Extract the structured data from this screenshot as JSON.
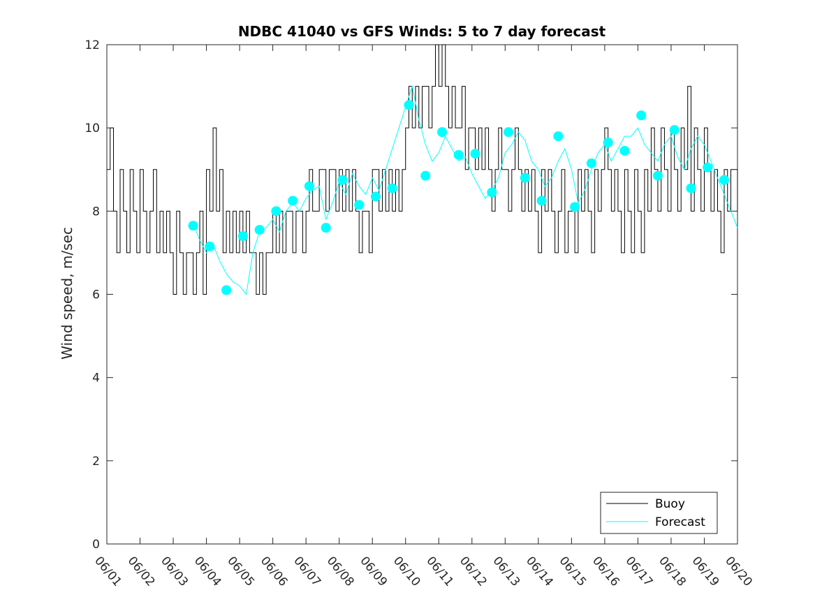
{
  "chart_data": {
    "type": "line",
    "title": "NDBC 41040 vs GFS Winds: 5 to 7 day forecast",
    "xlabel": "",
    "ylabel": "Wind speed, m/sec",
    "x_ticks": [
      "06/01",
      "06/02",
      "06/03",
      "06/04",
      "06/05",
      "06/06",
      "06/07",
      "06/08",
      "06/09",
      "06/10",
      "06/11",
      "06/12",
      "06/13",
      "06/14",
      "06/15",
      "06/16",
      "06/17",
      "06/18",
      "06/19",
      "06/20"
    ],
    "y_ticks": [
      "0",
      "2",
      "4",
      "6",
      "8",
      "10",
      "12"
    ],
    "xlim_days": [
      0,
      19
    ],
    "ylim": [
      0,
      12
    ],
    "grid": false,
    "legend_position": "bottom-right",
    "colors": {
      "buoy": "#000000",
      "forecast": "#00ffff",
      "axes": "#262626"
    },
    "legend": [
      {
        "label": "Buoy",
        "color": "#000000"
      },
      {
        "label": "Forecast",
        "color": "#00ffff"
      }
    ],
    "series": [
      {
        "name": "Buoy",
        "x": [
          0.0,
          0.1,
          0.2,
          0.3,
          0.4,
          0.5,
          0.6,
          0.7,
          0.8,
          0.9,
          1.0,
          1.1,
          1.2,
          1.3,
          1.4,
          1.5,
          1.6,
          1.7,
          1.8,
          1.9,
          2.0,
          2.1,
          2.2,
          2.3,
          2.4,
          2.5,
          2.6,
          2.7,
          2.8,
          2.9,
          3.0,
          3.1,
          3.2,
          3.3,
          3.4,
          3.5,
          3.6,
          3.7,
          3.8,
          3.9,
          4.0,
          4.1,
          4.2,
          4.3,
          4.4,
          4.5,
          4.6,
          4.7,
          4.8,
          4.9,
          5.0,
          5.1,
          5.2,
          5.3,
          5.4,
          5.5,
          5.6,
          5.7,
          5.8,
          5.9,
          6.0,
          6.1,
          6.2,
          6.3,
          6.4,
          6.5,
          6.6,
          6.7,
          6.8,
          6.9,
          7.0,
          7.1,
          7.2,
          7.3,
          7.4,
          7.5,
          7.6,
          7.7,
          7.8,
          7.9,
          8.0,
          8.1,
          8.2,
          8.3,
          8.4,
          8.5,
          8.6,
          8.7,
          8.8,
          8.9,
          9.0,
          9.1,
          9.2,
          9.3,
          9.4,
          9.5,
          9.6,
          9.7,
          9.8,
          9.9,
          10.0,
          10.1,
          10.2,
          10.3,
          10.4,
          10.5,
          10.6,
          10.7,
          10.8,
          10.9,
          11.0,
          11.1,
          11.2,
          11.3,
          11.4,
          11.5,
          11.6,
          11.7,
          11.8,
          11.9,
          12.0,
          12.1,
          12.2,
          12.3,
          12.4,
          12.5,
          12.6,
          12.7,
          12.8,
          12.9,
          13.0,
          13.1,
          13.2,
          13.3,
          13.4,
          13.5,
          13.6,
          13.7,
          13.8,
          13.9,
          14.0,
          14.1,
          14.2,
          14.3,
          14.4,
          14.5,
          14.6,
          14.7,
          14.8,
          14.9,
          15.0,
          15.1,
          15.2,
          15.3,
          15.4,
          15.5,
          15.6,
          15.7,
          15.8,
          15.9,
          16.0,
          16.1,
          16.2,
          16.3,
          16.4,
          16.5,
          16.6,
          16.7,
          16.8,
          16.9,
          17.0,
          17.1,
          17.2,
          17.3,
          17.4,
          17.5,
          17.6,
          17.7,
          17.8,
          17.9,
          18.0,
          18.1,
          18.2,
          18.3,
          18.4,
          18.5,
          18.6,
          18.7,
          18.8,
          18.9,
          19.0
        ],
        "y": [
          9,
          10,
          8,
          7,
          9,
          8,
          7,
          9,
          8,
          7,
          9,
          8,
          7,
          8,
          9,
          7,
          8,
          7,
          8,
          7,
          6,
          8,
          7,
          6,
          7,
          7,
          6,
          7,
          8,
          6,
          9,
          8,
          10,
          8,
          9,
          7,
          8,
          7,
          8,
          7,
          8,
          7,
          8,
          7,
          7,
          6,
          7,
          6,
          7,
          7,
          8,
          7,
          8,
          7,
          8,
          8,
          7,
          8,
          8,
          7,
          8,
          9,
          8,
          8,
          9,
          9,
          8,
          9,
          9,
          8,
          9,
          8,
          9,
          8,
          9,
          8,
          7,
          8,
          8,
          7,
          9,
          9,
          8,
          9,
          8,
          9,
          8,
          9,
          8,
          9,
          10,
          11,
          10,
          11,
          10,
          11,
          11,
          10,
          11,
          12,
          11,
          12,
          11,
          10,
          11,
          10,
          10,
          11,
          9,
          10,
          10,
          9,
          10,
          9,
          10,
          9,
          8,
          9,
          10,
          9,
          9,
          8,
          9,
          10,
          9,
          8,
          9,
          8,
          9,
          8,
          7,
          9,
          8,
          9,
          8,
          7,
          8,
          9,
          7,
          8,
          8,
          7,
          9,
          8,
          9,
          8,
          7,
          9,
          8,
          9,
          10,
          9,
          8,
          9,
          8,
          7,
          9,
          8,
          7,
          9,
          8,
          7,
          9,
          8,
          10,
          9,
          8,
          10,
          9,
          8,
          10,
          9,
          8,
          10,
          9,
          11,
          8,
          10,
          9,
          8,
          10,
          9,
          8,
          9,
          8,
          7,
          9,
          8,
          9,
          9,
          8
        ]
      },
      {
        "name": "Forecast",
        "x": [
          2.6,
          2.8,
          3.0,
          3.2,
          3.4,
          3.6,
          3.8,
          4.0,
          4.2,
          4.4,
          4.6,
          4.8,
          5.0,
          5.2,
          5.4,
          5.6,
          5.8,
          6.0,
          6.2,
          6.4,
          6.6,
          6.8,
          7.0,
          7.2,
          7.4,
          7.6,
          7.8,
          8.0,
          8.2,
          8.4,
          8.6,
          8.8,
          9.0,
          9.2,
          9.4,
          9.6,
          9.8,
          10.0,
          10.2,
          10.4,
          10.6,
          10.8,
          11.0,
          11.2,
          11.4,
          11.6,
          11.8,
          12.0,
          12.2,
          12.4,
          12.6,
          12.8,
          13.0,
          13.2,
          13.4,
          13.6,
          13.8,
          14.0,
          14.2,
          14.4,
          14.6,
          14.8,
          15.0,
          15.2,
          15.4,
          15.6,
          15.8,
          16.0,
          16.2,
          16.4,
          16.6,
          16.8,
          17.0,
          17.2,
          17.4,
          17.6,
          17.8,
          18.0,
          18.2,
          18.4,
          18.6,
          18.8,
          19.0
        ],
        "y": [
          7.7,
          7.3,
          7.0,
          7.2,
          6.8,
          6.5,
          6.3,
          6.2,
          6.0,
          7.0,
          7.5,
          7.6,
          7.8,
          7.5,
          8.0,
          8.2,
          8.0,
          8.3,
          8.5,
          8.6,
          7.8,
          8.2,
          8.7,
          8.4,
          8.9,
          8.6,
          8.4,
          8.8,
          8.5,
          9.0,
          9.5,
          10.0,
          10.5,
          11.0,
          10.2,
          9.6,
          9.2,
          9.4,
          9.8,
          9.5,
          9.2,
          9.3,
          8.9,
          8.6,
          8.3,
          8.5,
          8.8,
          9.4,
          9.6,
          9.9,
          9.7,
          9.2,
          9.0,
          8.6,
          8.8,
          9.2,
          9.5,
          9.0,
          8.2,
          8.5,
          9.0,
          9.4,
          9.6,
          9.2,
          9.5,
          9.8,
          9.8,
          10.0,
          9.6,
          9.4,
          9.2,
          9.6,
          9.8,
          9.3,
          9.0,
          9.5,
          9.8,
          9.6,
          9.2,
          8.8,
          8.4,
          8.0,
          7.6
        ]
      }
    ],
    "forecast_markers": {
      "x": [
        2.6,
        3.1,
        3.6,
        4.1,
        4.6,
        5.1,
        5.6,
        6.1,
        6.6,
        7.1,
        7.6,
        8.1,
        8.6,
        9.1,
        9.6,
        10.1,
        10.6,
        11.1,
        11.6,
        12.1,
        12.6,
        13.1,
        13.6,
        14.1,
        14.6,
        15.1,
        15.6,
        16.1,
        16.6,
        17.1,
        17.6,
        18.1,
        18.6
      ],
      "y": [
        7.65,
        7.15,
        6.1,
        7.4,
        7.55,
        8.0,
        8.25,
        8.6,
        7.6,
        8.75,
        8.15,
        8.35,
        8.55,
        10.55,
        8.85,
        9.9,
        9.35,
        9.38,
        8.45,
        9.9,
        8.8,
        8.25,
        9.8,
        8.1,
        9.15,
        9.65,
        9.45,
        10.3,
        8.85,
        9.95,
        8.55,
        9.05,
        8.75
      ]
    }
  }
}
